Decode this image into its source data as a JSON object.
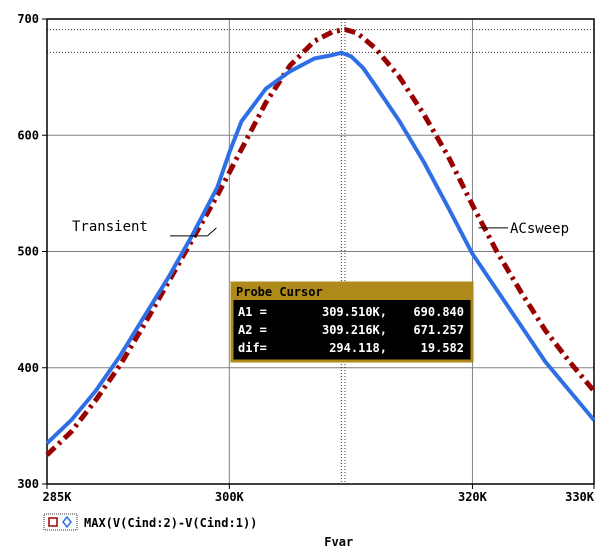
{
  "colors": {
    "transient": "#2f6fe6",
    "acsweep": "#990000",
    "grid": "#808080",
    "axis": "#000000",
    "probe_header": "#ad8a1a",
    "probe_body": "#000000"
  },
  "legend": {
    "expression": "MAX(V(Cind:2)-V(Cind:1))",
    "markers": [
      "square-marker-icon",
      "diamond-marker-icon"
    ]
  },
  "probe_cursor": {
    "title": "Probe Cursor",
    "rows": [
      {
        "label": "A1 =",
        "x": "309.510K,",
        "y": "690.840"
      },
      {
        "label": "A2 =",
        "x": "309.216K,",
        "y": "671.257"
      },
      {
        "label": "dif=",
        "x": "294.118,",
        "y": "19.582"
      }
    ]
  },
  "chart_data": {
    "type": "line",
    "title": "",
    "xlabel": "Fvar",
    "ylabel": "",
    "xlim": [
      285000,
      330000
    ],
    "ylim": [
      300,
      700
    ],
    "x_ticks": [
      285000,
      300000,
      320000,
      330000
    ],
    "x_tick_labels": [
      "285K",
      "300K",
      "320K",
      "330K"
    ],
    "y_ticks": [
      300,
      400,
      500,
      600,
      700
    ],
    "y_tick_labels": [
      "300",
      "400",
      "500",
      "600",
      "700"
    ],
    "grid": true,
    "cursor_lines": {
      "x": [
        309510,
        309216
      ],
      "y": [
        690.84,
        671.257
      ]
    },
    "annotations": [
      {
        "text": "Transient",
        "series": "Transient",
        "at": [
          298200,
          522
        ]
      },
      {
        "text": "ACsweep",
        "series": "ACsweep",
        "at": [
          320500,
          522
        ]
      }
    ],
    "series": [
      {
        "name": "Transient",
        "style": "solid",
        "x": [
          285000,
          287000,
          289000,
          291000,
          293000,
          295000,
          297000,
          299000,
          300000,
          301000,
          303000,
          305000,
          307000,
          308500,
          309216,
          310000,
          311000,
          312000,
          314000,
          316000,
          318000,
          320000,
          322000,
          324000,
          326000,
          328000,
          330000
        ],
        "y": [
          335,
          355,
          380,
          410,
          444,
          478,
          515,
          555,
          585,
          612,
          640,
          655,
          666,
          669,
          671,
          668,
          658,
          643,
          612,
          577,
          538,
          498,
          467,
          436,
          405,
          380,
          355
        ]
      },
      {
        "name": "ACsweep",
        "style": "dashdot",
        "x": [
          285000,
          287000,
          289000,
          291000,
          293000,
          295000,
          297000,
          299000,
          301000,
          303000,
          305000,
          307000,
          308500,
          309510,
          310500,
          312000,
          314000,
          316000,
          318000,
          320000,
          322000,
          324000,
          326000,
          328000,
          330000
        ],
        "y": [
          325,
          345,
          372,
          402,
          437,
          474,
          511,
          548,
          588,
          628,
          660,
          681,
          689,
          691,
          688,
          675,
          650,
          618,
          582,
          540,
          500,
          465,
          432,
          405,
          380
        ]
      }
    ]
  }
}
